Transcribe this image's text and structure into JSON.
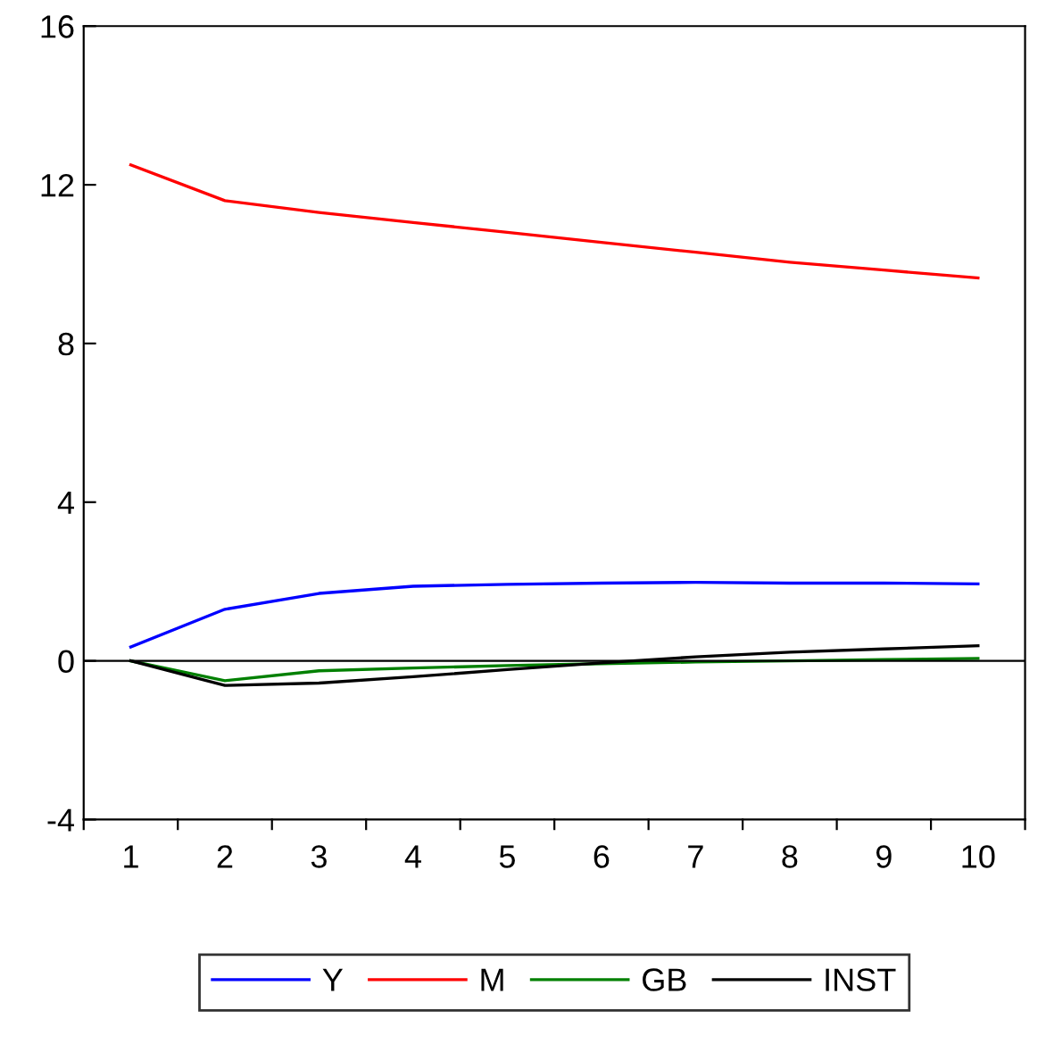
{
  "chart_data": {
    "type": "line",
    "x": [
      1,
      2,
      3,
      4,
      5,
      6,
      7,
      8,
      9,
      10
    ],
    "series": [
      {
        "name": "Y",
        "color": "#0000ff",
        "values": [
          0.35,
          1.3,
          1.7,
          1.88,
          1.93,
          1.96,
          1.98,
          1.96,
          1.96,
          1.94
        ]
      },
      {
        "name": "M",
        "color": "#ff0000",
        "values": [
          12.5,
          11.6,
          11.3,
          11.05,
          10.8,
          10.55,
          10.3,
          10.05,
          9.85,
          9.65
        ]
      },
      {
        "name": "GB",
        "color": "#008000",
        "values": [
          0,
          -0.5,
          -0.25,
          -0.18,
          -0.12,
          -0.07,
          -0.03,
          0,
          0.03,
          0.06
        ]
      },
      {
        "name": "INST",
        "color": "#000000",
        "values": [
          0,
          -0.62,
          -0.56,
          -0.4,
          -0.22,
          -0.05,
          0.1,
          0.22,
          0.3,
          0.38
        ]
      }
    ],
    "xlim": [
      0.5,
      10.5
    ],
    "xticks": [
      1,
      2,
      3,
      4,
      5,
      6,
      7,
      8,
      9,
      10
    ],
    "ylim": [
      -4,
      16
    ],
    "yticks": [
      -4,
      0,
      4,
      8,
      12,
      16
    ],
    "ref_lines": [
      {
        "axis": "y",
        "value": 0,
        "color": "#000000"
      }
    ],
    "grid": false,
    "legend": "bottom",
    "marker": "none",
    "line_style": "solid"
  }
}
